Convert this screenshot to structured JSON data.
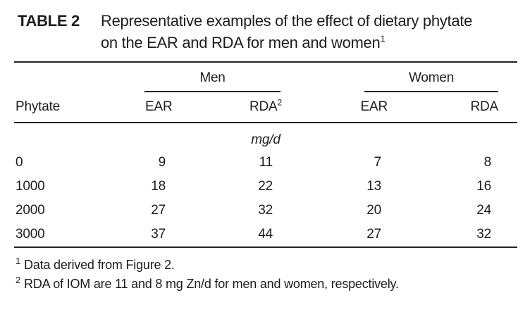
{
  "page": {
    "background": "#ffffff",
    "text_color": "#1d1d1d",
    "rule_color": "#222222"
  },
  "title": {
    "label": "TABLE 2",
    "text": "Representative examples of the effect of dietary phytate on the EAR and RDA for men and women",
    "footnote_ref": "1"
  },
  "table": {
    "group_headers": {
      "men": "Men",
      "women": "Women"
    },
    "header": {
      "phytate": "Phytate",
      "men_ear": "EAR",
      "men_rda": "RDA",
      "men_rda_sup": "2",
      "women_ear": "EAR",
      "women_rda": "RDA"
    },
    "units": "mg/d",
    "rows": [
      {
        "phytate": "0",
        "men_ear": "9",
        "men_rda": "11",
        "women_ear": "7",
        "women_rda": "8"
      },
      {
        "phytate": "1000",
        "men_ear": "18",
        "men_rda": "22",
        "women_ear": "13",
        "women_rda": "16"
      },
      {
        "phytate": "2000",
        "men_ear": "27",
        "men_rda": "32",
        "women_ear": "20",
        "women_rda": "24"
      },
      {
        "phytate": "3000",
        "men_ear": "37",
        "men_rda": "44",
        "women_ear": "27",
        "women_rda": "32"
      }
    ]
  },
  "footnotes": [
    {
      "marker": "1",
      "text": "Data derived from Figure 2."
    },
    {
      "marker": "2",
      "text": "RDA of IOM are 11 and 8 mg Zn/d for men and women, respectively."
    }
  ],
  "chart_data": {
    "type": "table",
    "title": "Representative examples of the effect of dietary phytate on the EAR and RDA for men and women",
    "column_groups": [
      "",
      "Men",
      "Men",
      "Women",
      "Women"
    ],
    "columns": [
      "Phytate",
      "EAR",
      "RDA",
      "EAR",
      "RDA"
    ],
    "units": "mg/d",
    "rows": [
      [
        0,
        9,
        11,
        7,
        8
      ],
      [
        1000,
        18,
        22,
        13,
        16
      ],
      [
        2000,
        27,
        32,
        20,
        24
      ],
      [
        3000,
        37,
        44,
        27,
        32
      ]
    ],
    "footnotes": [
      "Data derived from Figure 2.",
      "RDA of IOM are 11 and 8 mg Zn/d for men and women, respectively."
    ]
  }
}
